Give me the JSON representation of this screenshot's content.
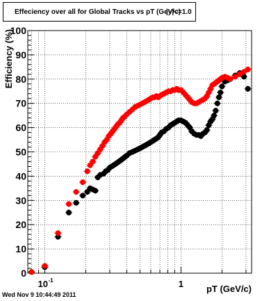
{
  "title": "Effeciency over all for Global Tracks vs pT (GeV/c)",
  "title_overlay": "|y|<=1.0",
  "timestamp": "Wed Nov  9 10:44:49 2011",
  "chart_data": {
    "type": "scatter",
    "xlabel": "pT (GeV/c)",
    "ylabel": "Efficiency (%)",
    "xscale": "log",
    "xlim": [
      0.075,
      3.3
    ],
    "ylim": [
      0,
      100
    ],
    "grid": true,
    "y_ticks": [
      0,
      10,
      20,
      30,
      40,
      50,
      60,
      70,
      80,
      90,
      100
    ],
    "x_ticks": [
      {
        "value": 0.1,
        "base": "10",
        "exp": "-1"
      },
      {
        "value": 1,
        "label": "1"
      }
    ],
    "series": [
      {
        "color": "#000000",
        "x": [
          0.08,
          0.1,
          0.125,
          0.15,
          0.17,
          0.19,
          0.205,
          0.215,
          0.225,
          0.235,
          0.245,
          0.255,
          0.27,
          0.28,
          0.29,
          0.3,
          0.31,
          0.32,
          0.33,
          0.34,
          0.35,
          0.36,
          0.37,
          0.38,
          0.39,
          0.4,
          0.42,
          0.44,
          0.46,
          0.48,
          0.5,
          0.52,
          0.54,
          0.56,
          0.58,
          0.6,
          0.62,
          0.64,
          0.66,
          0.68,
          0.7,
          0.72,
          0.75,
          0.78,
          0.81,
          0.84,
          0.87,
          0.9,
          0.93,
          0.96,
          1.0,
          1.04,
          1.08,
          1.12,
          1.16,
          1.2,
          1.25,
          1.3,
          1.35,
          1.4,
          1.45,
          1.5,
          1.55,
          1.6,
          1.65,
          1.7,
          1.75,
          1.8,
          1.85,
          1.9,
          1.95,
          2.0,
          2.1,
          2.2,
          2.3,
          2.5,
          2.7,
          2.9,
          3.1
        ],
        "y": [
          0.5,
          2.5,
          15,
          25,
          29,
          32,
          33.5,
          35,
          34.5,
          34,
          39.5,
          40.5,
          41,
          42,
          42.5,
          43.5,
          44,
          44.5,
          45,
          45.5,
          46,
          46.5,
          47,
          47.5,
          48,
          48.5,
          49.5,
          50,
          50.5,
          51,
          51.5,
          52,
          52.5,
          53,
          53.5,
          54,
          54.5,
          55,
          55.5,
          56,
          57,
          58,
          58.5,
          59.5,
          60,
          61,
          61.5,
          62,
          62.5,
          63,
          63,
          62.5,
          62,
          61,
          60,
          58.5,
          57.5,
          57,
          57,
          56.5,
          57.5,
          58,
          59,
          61,
          62.5,
          63.5,
          65,
          67,
          70,
          72.5,
          74.5,
          77,
          79,
          79.5,
          80,
          81.5,
          82.5,
          81,
          76
        ]
      },
      {
        "color": "#ff0000",
        "x": [
          0.08,
          0.1,
          0.125,
          0.15,
          0.17,
          0.19,
          0.205,
          0.215,
          0.225,
          0.235,
          0.245,
          0.255,
          0.265,
          0.275,
          0.285,
          0.295,
          0.305,
          0.315,
          0.325,
          0.335,
          0.345,
          0.355,
          0.365,
          0.375,
          0.385,
          0.4,
          0.42,
          0.44,
          0.46,
          0.48,
          0.5,
          0.52,
          0.54,
          0.56,
          0.58,
          0.6,
          0.62,
          0.64,
          0.66,
          0.68,
          0.7,
          0.72,
          0.75,
          0.78,
          0.81,
          0.84,
          0.87,
          0.9,
          0.93,
          0.96,
          1.0,
          1.04,
          1.08,
          1.12,
          1.16,
          1.2,
          1.25,
          1.3,
          1.35,
          1.4,
          1.45,
          1.5,
          1.55,
          1.6,
          1.65,
          1.7,
          1.75,
          1.8,
          1.85,
          1.9,
          1.95,
          2.0,
          2.1,
          2.2,
          2.3,
          2.5,
          2.7,
          2.9,
          3.1
        ],
        "y": [
          0.5,
          3,
          16.5,
          28.5,
          33.5,
          37.5,
          42,
          44.5,
          46,
          48,
          49.5,
          51,
          52.5,
          54,
          55,
          56.5,
          57.5,
          58.5,
          59.5,
          60.5,
          61.5,
          62,
          63,
          64,
          64.5,
          65.5,
          66.5,
          67.5,
          68.5,
          69,
          69.5,
          70,
          70.5,
          71,
          71.5,
          72,
          72.5,
          72.5,
          73,
          72.5,
          73,
          73.5,
          74,
          74.5,
          75,
          75,
          75.5,
          75.5,
          76,
          75.5,
          75.5,
          74.5,
          73.5,
          72.5,
          71.5,
          70.5,
          70,
          70,
          70.5,
          71,
          71.5,
          72,
          73,
          74.5,
          76,
          77.5,
          78,
          78.5,
          79,
          79.5,
          80,
          80.5,
          81,
          80.5,
          80,
          81,
          82,
          83,
          84
        ]
      }
    ]
  }
}
